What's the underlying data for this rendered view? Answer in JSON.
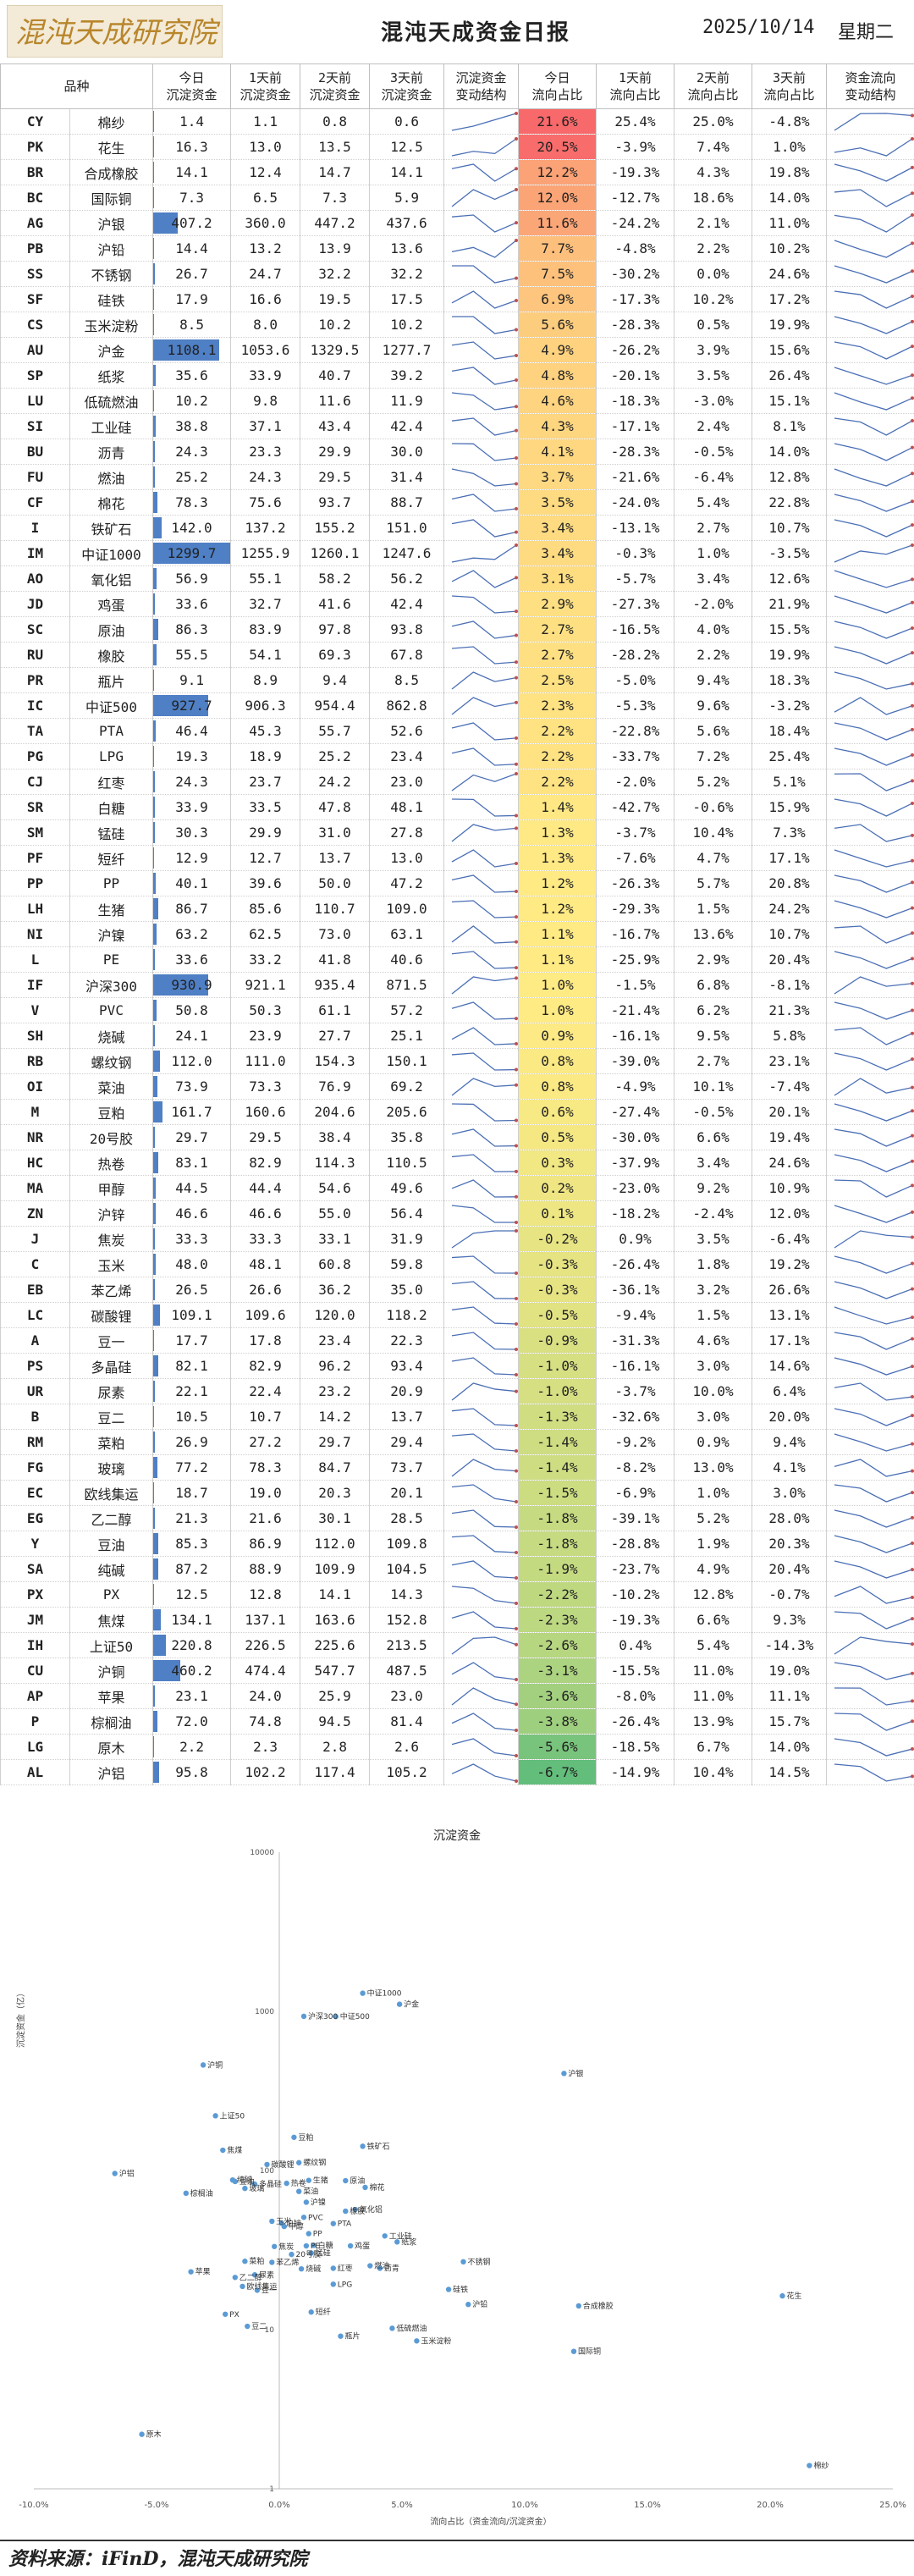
{
  "header": {
    "logo_text": "混沌天成研究院",
    "title": "混沌天成资金日报",
    "date": "2025/10/14",
    "weekday": "星期二"
  },
  "columns": [
    "品种",
    "今日\n沉淀资金",
    "1天前\n沉淀资金",
    "2天前\n沉淀资金",
    "3天前\n沉淀资金",
    "沉淀资金\n变动结构",
    "今日\n流向占比",
    "1天前\n流向占比",
    "2天前\n流向占比",
    "3天前\n流向占比",
    "资金流向\n变动结构"
  ],
  "rows": [
    {
      "code": "CY",
      "name": "棉纱",
      "d0": "1.4",
      "d1": "1.1",
      "d2": "0.8",
      "d3": "0.6",
      "s0": "21.6%",
      "s1": "25.4%",
      "s2": "25.0%",
      "s3": "-4.8%",
      "sv": 21.6
    },
    {
      "code": "PK",
      "name": "花生",
      "d0": "16.3",
      "d1": "13.0",
      "d2": "13.5",
      "d3": "12.5",
      "s0": "20.5%",
      "s1": "-3.9%",
      "s2": "7.4%",
      "s3": "1.0%",
      "sv": 20.5
    },
    {
      "code": "BR",
      "name": "合成橡胶",
      "d0": "14.1",
      "d1": "12.4",
      "d2": "14.7",
      "d3": "14.1",
      "s0": "12.2%",
      "s1": "-19.3%",
      "s2": "4.3%",
      "s3": "19.8%",
      "sv": 12.2
    },
    {
      "code": "BC",
      "name": "国际铜",
      "d0": "7.3",
      "d1": "6.5",
      "d2": "7.3",
      "d3": "5.9",
      "s0": "12.0%",
      "s1": "-12.7%",
      "s2": "18.6%",
      "s3": "14.0%",
      "sv": 12.0
    },
    {
      "code": "AG",
      "name": "沪银",
      "d0": "407.2",
      "d1": "360.0",
      "d2": "447.2",
      "d3": "437.6",
      "s0": "11.6%",
      "s1": "-24.2%",
      "s2": "2.1%",
      "s3": "11.0%",
      "sv": 11.6
    },
    {
      "code": "PB",
      "name": "沪铅",
      "d0": "14.4",
      "d1": "13.2",
      "d2": "13.9",
      "d3": "13.6",
      "s0": "7.7%",
      "s1": "-4.8%",
      "s2": "2.2%",
      "s3": "10.2%",
      "sv": 7.7
    },
    {
      "code": "SS",
      "name": "不锈钢",
      "d0": "26.7",
      "d1": "24.7",
      "d2": "32.2",
      "d3": "32.2",
      "s0": "7.5%",
      "s1": "-30.2%",
      "s2": "0.0%",
      "s3": "24.6%",
      "sv": 7.5
    },
    {
      "code": "SF",
      "name": "硅铁",
      "d0": "17.9",
      "d1": "16.6",
      "d2": "19.5",
      "d3": "17.5",
      "s0": "6.9%",
      "s1": "-17.3%",
      "s2": "10.2%",
      "s3": "17.2%",
      "sv": 6.9
    },
    {
      "code": "CS",
      "name": "玉米淀粉",
      "d0": "8.5",
      "d1": "8.0",
      "d2": "10.2",
      "d3": "10.2",
      "s0": "5.6%",
      "s1": "-28.3%",
      "s2": "0.5%",
      "s3": "19.9%",
      "sv": 5.6
    },
    {
      "code": "AU",
      "name": "沪金",
      "d0": "1108.1",
      "d1": "1053.6",
      "d2": "1329.5",
      "d3": "1277.7",
      "s0": "4.9%",
      "s1": "-26.2%",
      "s2": "3.9%",
      "s3": "15.6%",
      "sv": 4.9
    },
    {
      "code": "SP",
      "name": "纸浆",
      "d0": "35.6",
      "d1": "33.9",
      "d2": "40.7",
      "d3": "39.2",
      "s0": "4.8%",
      "s1": "-20.1%",
      "s2": "3.5%",
      "s3": "26.4%",
      "sv": 4.8
    },
    {
      "code": "LU",
      "name": "低硫燃油",
      "d0": "10.2",
      "d1": "9.8",
      "d2": "11.6",
      "d3": "11.9",
      "s0": "4.6%",
      "s1": "-18.3%",
      "s2": "-3.0%",
      "s3": "15.1%",
      "sv": 4.6
    },
    {
      "code": "SI",
      "name": "工业硅",
      "d0": "38.8",
      "d1": "37.1",
      "d2": "43.4",
      "d3": "42.4",
      "s0": "4.3%",
      "s1": "-17.1%",
      "s2": "2.4%",
      "s3": "8.1%",
      "sv": 4.3
    },
    {
      "code": "BU",
      "name": "沥青",
      "d0": "24.3",
      "d1": "23.3",
      "d2": "29.9",
      "d3": "30.0",
      "s0": "4.1%",
      "s1": "-28.3%",
      "s2": "-0.5%",
      "s3": "14.0%",
      "sv": 4.1
    },
    {
      "code": "FU",
      "name": "燃油",
      "d0": "25.2",
      "d1": "24.3",
      "d2": "29.5",
      "d3": "31.4",
      "s0": "3.7%",
      "s1": "-21.6%",
      "s2": "-6.4%",
      "s3": "12.8%",
      "sv": 3.7
    },
    {
      "code": "CF",
      "name": "棉花",
      "d0": "78.3",
      "d1": "75.6",
      "d2": "93.7",
      "d3": "88.7",
      "s0": "3.5%",
      "s1": "-24.0%",
      "s2": "5.4%",
      "s3": "22.8%",
      "sv": 3.5
    },
    {
      "code": "I",
      "name": "铁矿石",
      "d0": "142.0",
      "d1": "137.2",
      "d2": "155.2",
      "d3": "151.0",
      "s0": "3.4%",
      "s1": "-13.1%",
      "s2": "2.7%",
      "s3": "10.7%",
      "sv": 3.4
    },
    {
      "code": "IM",
      "name": "中证1000",
      "d0": "1299.7",
      "d1": "1255.9",
      "d2": "1260.1",
      "d3": "1247.6",
      "s0": "3.4%",
      "s1": "-0.3%",
      "s2": "1.0%",
      "s3": "-3.5%",
      "sv": 3.4
    },
    {
      "code": "AO",
      "name": "氧化铝",
      "d0": "56.9",
      "d1": "55.1",
      "d2": "58.2",
      "d3": "56.2",
      "s0": "3.1%",
      "s1": "-5.7%",
      "s2": "3.4%",
      "s3": "12.6%",
      "sv": 3.1
    },
    {
      "code": "JD",
      "name": "鸡蛋",
      "d0": "33.6",
      "d1": "32.7",
      "d2": "41.6",
      "d3": "42.4",
      "s0": "2.9%",
      "s1": "-27.3%",
      "s2": "-2.0%",
      "s3": "21.9%",
      "sv": 2.9
    },
    {
      "code": "SC",
      "name": "原油",
      "d0": "86.3",
      "d1": "83.9",
      "d2": "97.8",
      "d3": "93.8",
      "s0": "2.7%",
      "s1": "-16.5%",
      "s2": "4.0%",
      "s3": "15.5%",
      "sv": 2.7
    },
    {
      "code": "RU",
      "name": "橡胶",
      "d0": "55.5",
      "d1": "54.1",
      "d2": "69.3",
      "d3": "67.8",
      "s0": "2.7%",
      "s1": "-28.2%",
      "s2": "2.2%",
      "s3": "19.9%",
      "sv": 2.7
    },
    {
      "code": "PR",
      "name": "瓶片",
      "d0": "9.1",
      "d1": "8.9",
      "d2": "9.4",
      "d3": "8.5",
      "s0": "2.5%",
      "s1": "-5.0%",
      "s2": "9.4%",
      "s3": "18.3%",
      "sv": 2.5
    },
    {
      "code": "IC",
      "name": "中证500",
      "d0": "927.7",
      "d1": "906.3",
      "d2": "954.4",
      "d3": "862.8",
      "s0": "2.3%",
      "s1": "-5.3%",
      "s2": "9.6%",
      "s3": "-3.2%",
      "sv": 2.3
    },
    {
      "code": "TA",
      "name": "PTA",
      "d0": "46.4",
      "d1": "45.3",
      "d2": "55.7",
      "d3": "52.6",
      "s0": "2.2%",
      "s1": "-22.8%",
      "s2": "5.6%",
      "s3": "18.4%",
      "sv": 2.2
    },
    {
      "code": "PG",
      "name": "LPG",
      "d0": "19.3",
      "d1": "18.9",
      "d2": "25.2",
      "d3": "23.4",
      "s0": "2.2%",
      "s1": "-33.7%",
      "s2": "7.2%",
      "s3": "25.4%",
      "sv": 2.2
    },
    {
      "code": "CJ",
      "name": "红枣",
      "d0": "24.3",
      "d1": "23.7",
      "d2": "24.2",
      "d3": "23.0",
      "s0": "2.2%",
      "s1": "-2.0%",
      "s2": "5.2%",
      "s3": "5.1%",
      "sv": 2.2
    },
    {
      "code": "SR",
      "name": "白糖",
      "d0": "33.9",
      "d1": "33.5",
      "d2": "47.8",
      "d3": "48.1",
      "s0": "1.4%",
      "s1": "-42.7%",
      "s2": "-0.6%",
      "s3": "15.9%",
      "sv": 1.4
    },
    {
      "code": "SM",
      "name": "锰硅",
      "d0": "30.3",
      "d1": "29.9",
      "d2": "31.0",
      "d3": "27.8",
      "s0": "1.3%",
      "s1": "-3.7%",
      "s2": "10.4%",
      "s3": "7.3%",
      "sv": 1.3
    },
    {
      "code": "PF",
      "name": "短纤",
      "d0": "12.9",
      "d1": "12.7",
      "d2": "13.7",
      "d3": "13.0",
      "s0": "1.3%",
      "s1": "-7.6%",
      "s2": "4.7%",
      "s3": "17.1%",
      "sv": 1.3
    },
    {
      "code": "PP",
      "name": "PP",
      "d0": "40.1",
      "d1": "39.6",
      "d2": "50.0",
      "d3": "47.2",
      "s0": "1.2%",
      "s1": "-26.3%",
      "s2": "5.7%",
      "s3": "20.8%",
      "sv": 1.2
    },
    {
      "code": "LH",
      "name": "生猪",
      "d0": "86.7",
      "d1": "85.6",
      "d2": "110.7",
      "d3": "109.0",
      "s0": "1.2%",
      "s1": "-29.3%",
      "s2": "1.5%",
      "s3": "24.2%",
      "sv": 1.2
    },
    {
      "code": "NI",
      "name": "沪镍",
      "d0": "63.2",
      "d1": "62.5",
      "d2": "73.0",
      "d3": "63.1",
      "s0": "1.1%",
      "s1": "-16.7%",
      "s2": "13.6%",
      "s3": "10.7%",
      "sv": 1.1
    },
    {
      "code": "L",
      "name": "PE",
      "d0": "33.6",
      "d1": "33.2",
      "d2": "41.8",
      "d3": "40.6",
      "s0": "1.1%",
      "s1": "-25.9%",
      "s2": "2.9%",
      "s3": "20.4%",
      "sv": 1.1
    },
    {
      "code": "IF",
      "name": "沪深300",
      "d0": "930.9",
      "d1": "921.1",
      "d2": "935.4",
      "d3": "871.5",
      "s0": "1.0%",
      "s1": "-1.5%",
      "s2": "6.8%",
      "s3": "-8.1%",
      "sv": 1.0
    },
    {
      "code": "V",
      "name": "PVC",
      "d0": "50.8",
      "d1": "50.3",
      "d2": "61.1",
      "d3": "57.2",
      "s0": "1.0%",
      "s1": "-21.4%",
      "s2": "6.2%",
      "s3": "21.3%",
      "sv": 1.0
    },
    {
      "code": "SH",
      "name": "烧碱",
      "d0": "24.1",
      "d1": "23.9",
      "d2": "27.7",
      "d3": "25.1",
      "s0": "0.9%",
      "s1": "-16.1%",
      "s2": "9.5%",
      "s3": "5.8%",
      "sv": 0.9
    },
    {
      "code": "RB",
      "name": "螺纹钢",
      "d0": "112.0",
      "d1": "111.0",
      "d2": "154.3",
      "d3": "150.1",
      "s0": "0.8%",
      "s1": "-39.0%",
      "s2": "2.7%",
      "s3": "23.1%",
      "sv": 0.8
    },
    {
      "code": "OI",
      "name": "菜油",
      "d0": "73.9",
      "d1": "73.3",
      "d2": "76.9",
      "d3": "69.2",
      "s0": "0.8%",
      "s1": "-4.9%",
      "s2": "10.1%",
      "s3": "-7.4%",
      "sv": 0.8
    },
    {
      "code": "M",
      "name": "豆粕",
      "d0": "161.7",
      "d1": "160.6",
      "d2": "204.6",
      "d3": "205.6",
      "s0": "0.6%",
      "s1": "-27.4%",
      "s2": "-0.5%",
      "s3": "20.1%",
      "sv": 0.6
    },
    {
      "code": "NR",
      "name": "20号胶",
      "d0": "29.7",
      "d1": "29.5",
      "d2": "38.4",
      "d3": "35.8",
      "s0": "0.5%",
      "s1": "-30.0%",
      "s2": "6.6%",
      "s3": "19.4%",
      "sv": 0.5
    },
    {
      "code": "HC",
      "name": "热卷",
      "d0": "83.1",
      "d1": "82.9",
      "d2": "114.3",
      "d3": "110.5",
      "s0": "0.3%",
      "s1": "-37.9%",
      "s2": "3.4%",
      "s3": "24.6%",
      "sv": 0.3
    },
    {
      "code": "MA",
      "name": "甲醇",
      "d0": "44.5",
      "d1": "44.4",
      "d2": "54.6",
      "d3": "49.6",
      "s0": "0.2%",
      "s1": "-23.0%",
      "s2": "9.2%",
      "s3": "10.9%",
      "sv": 0.2
    },
    {
      "code": "ZN",
      "name": "沪锌",
      "d0": "46.6",
      "d1": "46.6",
      "d2": "55.0",
      "d3": "56.4",
      "s0": "0.1%",
      "s1": "-18.2%",
      "s2": "-2.4%",
      "s3": "12.0%",
      "sv": 0.1
    },
    {
      "code": "J",
      "name": "焦炭",
      "d0": "33.3",
      "d1": "33.3",
      "d2": "33.1",
      "d3": "31.9",
      "s0": "-0.2%",
      "s1": "0.9%",
      "s2": "3.5%",
      "s3": "-6.4%",
      "sv": -0.2
    },
    {
      "code": "C",
      "name": "玉米",
      "d0": "48.0",
      "d1": "48.1",
      "d2": "60.8",
      "d3": "59.8",
      "s0": "-0.3%",
      "s1": "-26.4%",
      "s2": "1.8%",
      "s3": "19.2%",
      "sv": -0.3
    },
    {
      "code": "EB",
      "name": "苯乙烯",
      "d0": "26.5",
      "d1": "26.6",
      "d2": "36.2",
      "d3": "35.0",
      "s0": "-0.3%",
      "s1": "-36.1%",
      "s2": "3.2%",
      "s3": "26.6%",
      "sv": -0.3
    },
    {
      "code": "LC",
      "name": "碳酸锂",
      "d0": "109.1",
      "d1": "109.6",
      "d2": "120.0",
      "d3": "118.2",
      "s0": "-0.5%",
      "s1": "-9.4%",
      "s2": "1.5%",
      "s3": "13.1%",
      "sv": -0.5
    },
    {
      "code": "A",
      "name": "豆一",
      "d0": "17.7",
      "d1": "17.8",
      "d2": "23.4",
      "d3": "22.3",
      "s0": "-0.9%",
      "s1": "-31.3%",
      "s2": "4.6%",
      "s3": "17.1%",
      "sv": -0.9
    },
    {
      "code": "PS",
      "name": "多晶硅",
      "d0": "82.1",
      "d1": "82.9",
      "d2": "96.2",
      "d3": "93.4",
      "s0": "-1.0%",
      "s1": "-16.1%",
      "s2": "3.0%",
      "s3": "14.6%",
      "sv": -1.0
    },
    {
      "code": "UR",
      "name": "尿素",
      "d0": "22.1",
      "d1": "22.4",
      "d2": "23.2",
      "d3": "20.9",
      "s0": "-1.0%",
      "s1": "-3.7%",
      "s2": "10.0%",
      "s3": "6.4%",
      "sv": -1.0
    },
    {
      "code": "B",
      "name": "豆二",
      "d0": "10.5",
      "d1": "10.7",
      "d2": "14.2",
      "d3": "13.7",
      "s0": "-1.3%",
      "s1": "-32.6%",
      "s2": "3.0%",
      "s3": "20.0%",
      "sv": -1.3
    },
    {
      "code": "RM",
      "name": "菜粕",
      "d0": "26.9",
      "d1": "27.2",
      "d2": "29.7",
      "d3": "29.4",
      "s0": "-1.4%",
      "s1": "-9.2%",
      "s2": "0.9%",
      "s3": "9.4%",
      "sv": -1.4
    },
    {
      "code": "FG",
      "name": "玻璃",
      "d0": "77.2",
      "d1": "78.3",
      "d2": "84.7",
      "d3": "73.7",
      "s0": "-1.4%",
      "s1": "-8.2%",
      "s2": "13.0%",
      "s3": "4.1%",
      "sv": -1.4
    },
    {
      "code": "EC",
      "name": "欧线集运",
      "d0": "18.7",
      "d1": "19.0",
      "d2": "20.3",
      "d3": "20.1",
      "s0": "-1.5%",
      "s1": "-6.9%",
      "s2": "1.0%",
      "s3": "3.0%",
      "sv": -1.5
    },
    {
      "code": "EG",
      "name": "乙二醇",
      "d0": "21.3",
      "d1": "21.6",
      "d2": "30.1",
      "d3": "28.5",
      "s0": "-1.8%",
      "s1": "-39.1%",
      "s2": "5.2%",
      "s3": "28.0%",
      "sv": -1.8
    },
    {
      "code": "Y",
      "name": "豆油",
      "d0": "85.3",
      "d1": "86.9",
      "d2": "112.0",
      "d3": "109.8",
      "s0": "-1.8%",
      "s1": "-28.8%",
      "s2": "1.9%",
      "s3": "20.3%",
      "sv": -1.8
    },
    {
      "code": "SA",
      "name": "纯碱",
      "d0": "87.2",
      "d1": "88.9",
      "d2": "109.9",
      "d3": "104.5",
      "s0": "-1.9%",
      "s1": "-23.7%",
      "s2": "4.9%",
      "s3": "20.4%",
      "sv": -1.9
    },
    {
      "code": "PX",
      "name": "PX",
      "d0": "12.5",
      "d1": "12.8",
      "d2": "14.1",
      "d3": "14.3",
      "s0": "-2.2%",
      "s1": "-10.2%",
      "s2": "12.8%",
      "s3": "-0.7%",
      "sv": -2.2
    },
    {
      "code": "JM",
      "name": "焦煤",
      "d0": "134.1",
      "d1": "137.1",
      "d2": "163.6",
      "d3": "152.8",
      "s0": "-2.3%",
      "s1": "-19.3%",
      "s2": "6.6%",
      "s3": "9.3%",
      "sv": -2.3
    },
    {
      "code": "IH",
      "name": "上证50",
      "d0": "220.8",
      "d1": "226.5",
      "d2": "225.6",
      "d3": "213.5",
      "s0": "-2.6%",
      "s1": "0.4%",
      "s2": "5.4%",
      "s3": "-14.3%",
      "sv": -2.6
    },
    {
      "code": "CU",
      "name": "沪铜",
      "d0": "460.2",
      "d1": "474.4",
      "d2": "547.7",
      "d3": "487.5",
      "s0": "-3.1%",
      "s1": "-15.5%",
      "s2": "11.0%",
      "s3": "19.0%",
      "sv": -3.1
    },
    {
      "code": "AP",
      "name": "苹果",
      "d0": "23.1",
      "d1": "24.0",
      "d2": "25.9",
      "d3": "23.0",
      "s0": "-3.6%",
      "s1": "-8.0%",
      "s2": "11.0%",
      "s3": "11.1%",
      "sv": -3.6
    },
    {
      "code": "P",
      "name": "棕榈油",
      "d0": "72.0",
      "d1": "74.8",
      "d2": "94.5",
      "d3": "81.4",
      "s0": "-3.8%",
      "s1": "-26.4%",
      "s2": "13.9%",
      "s3": "15.7%",
      "sv": -3.8
    },
    {
      "code": "LG",
      "name": "原木",
      "d0": "2.2",
      "d1": "2.3",
      "d2": "2.8",
      "d3": "2.6",
      "s0": "-5.6%",
      "s1": "-18.5%",
      "s2": "6.7%",
      "s3": "14.0%",
      "sv": -5.6
    },
    {
      "code": "AL",
      "name": "沪铝",
      "d0": "95.8",
      "d1": "102.2",
      "d2": "117.4",
      "d3": "105.2",
      "s0": "-6.7%",
      "s1": "-14.9%",
      "s2": "10.4%",
      "s3": "14.5%",
      "sv": -6.7
    }
  ],
  "colors": {
    "bar": "#4f7fc4",
    "share_high": "#f8696b",
    "share_mid": "#ffeb84",
    "share_low": "#63be7b",
    "spark": "#4a6fb5",
    "spark_dot": "#c0504d",
    "scatter_dot": "#5b9bd5"
  },
  "chart_data": {
    "type": "scatter",
    "title": "沉淀资金",
    "xlabel": "流向占比（资金流向/沉淀资金）",
    "ylabel": "沉淀资金（亿）",
    "xlim": [
      -10,
      25
    ],
    "ylim": [
      1,
      10000
    ],
    "y_scale": "log",
    "x_ticks": [
      "-10.0%",
      "-5.0%",
      "0.0%",
      "5.0%",
      "10.0%",
      "15.0%",
      "20.0%",
      "25.0%"
    ],
    "y_ticks": [
      "1",
      "10",
      "100",
      "1000",
      "10000"
    ],
    "points_from": "rows"
  },
  "footer": "资料来源：iFinD，混沌天成研究院"
}
